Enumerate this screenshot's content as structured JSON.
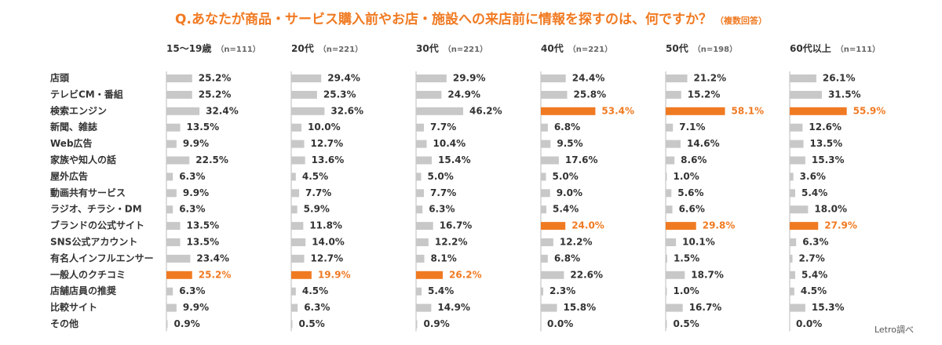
{
  "title": "Q.あなたが商品・サービス購入前やお店・施設への来店前に情報を探すのは、何ですか？",
  "title_note": "（複数回答）",
  "source": "Letro調べ",
  "chart_data": {
    "type": "bar",
    "orientation": "horizontal",
    "xlim": [
      0,
      60
    ],
    "categories": [
      "店頭",
      "テレビCM・番組",
      "検索エンジン",
      "新聞、雑誌",
      "Web広告",
      "家族や知人の話",
      "屋外広告",
      "動画共有サービス",
      "ラジオ、チラシ・DM",
      "ブランドの公式サイト",
      "SNS公式アカウント",
      "有名人インフルエンサー",
      "一般人のクチコミ",
      "店舗店員の推奨",
      "比較サイト",
      "その他"
    ],
    "series": [
      {
        "name": "15～19歳",
        "n_label": "（n=111）",
        "highlight_index": 12,
        "values": [
          25.2,
          25.2,
          32.4,
          13.5,
          9.9,
          22.5,
          6.3,
          9.9,
          6.3,
          13.5,
          13.5,
          23.4,
          25.2,
          6.3,
          9.9,
          0.9
        ]
      },
      {
        "name": "20代",
        "n_label": "（n=221）",
        "highlight_index": 12,
        "values": [
          29.4,
          25.3,
          32.6,
          10.0,
          12.7,
          13.6,
          4.5,
          7.7,
          5.9,
          11.8,
          14.0,
          12.7,
          19.9,
          4.5,
          6.3,
          0.5
        ]
      },
      {
        "name": "30代",
        "n_label": "（n=221）",
        "highlight_index": 12,
        "values": [
          29.9,
          24.9,
          46.2,
          7.7,
          10.4,
          15.4,
          5.0,
          7.7,
          6.3,
          16.7,
          12.2,
          8.1,
          26.2,
          5.4,
          14.9,
          0.9
        ]
      },
      {
        "name": "40代",
        "n_label": "（n=221）",
        "highlight_index": [
          2,
          9
        ],
        "values": [
          24.4,
          25.8,
          53.4,
          6.8,
          9.5,
          17.6,
          5.0,
          9.0,
          5.4,
          24.0,
          12.2,
          6.8,
          22.6,
          2.3,
          15.8,
          0.0
        ]
      },
      {
        "name": "50代",
        "n_label": "（n=198）",
        "highlight_index": [
          2,
          9
        ],
        "values": [
          21.2,
          15.2,
          58.1,
          7.1,
          14.6,
          8.6,
          1.0,
          5.6,
          6.6,
          29.8,
          10.1,
          1.5,
          18.7,
          1.0,
          16.7,
          0.5
        ]
      },
      {
        "name": "60代以上",
        "n_label": "（n=111）",
        "highlight_index": [
          2,
          9
        ],
        "values": [
          26.1,
          31.5,
          55.9,
          12.6,
          13.5,
          15.3,
          3.6,
          5.4,
          18.0,
          27.9,
          6.3,
          2.7,
          5.4,
          4.5,
          15.3,
          0.0
        ]
      }
    ],
    "value_suffix": "%",
    "colors": {
      "bar": "#c8c8c8",
      "highlight": "#f07a22",
      "text": "#333333",
      "highlight_text": "#f07a22",
      "baseline": "#bbbbbb"
    }
  }
}
